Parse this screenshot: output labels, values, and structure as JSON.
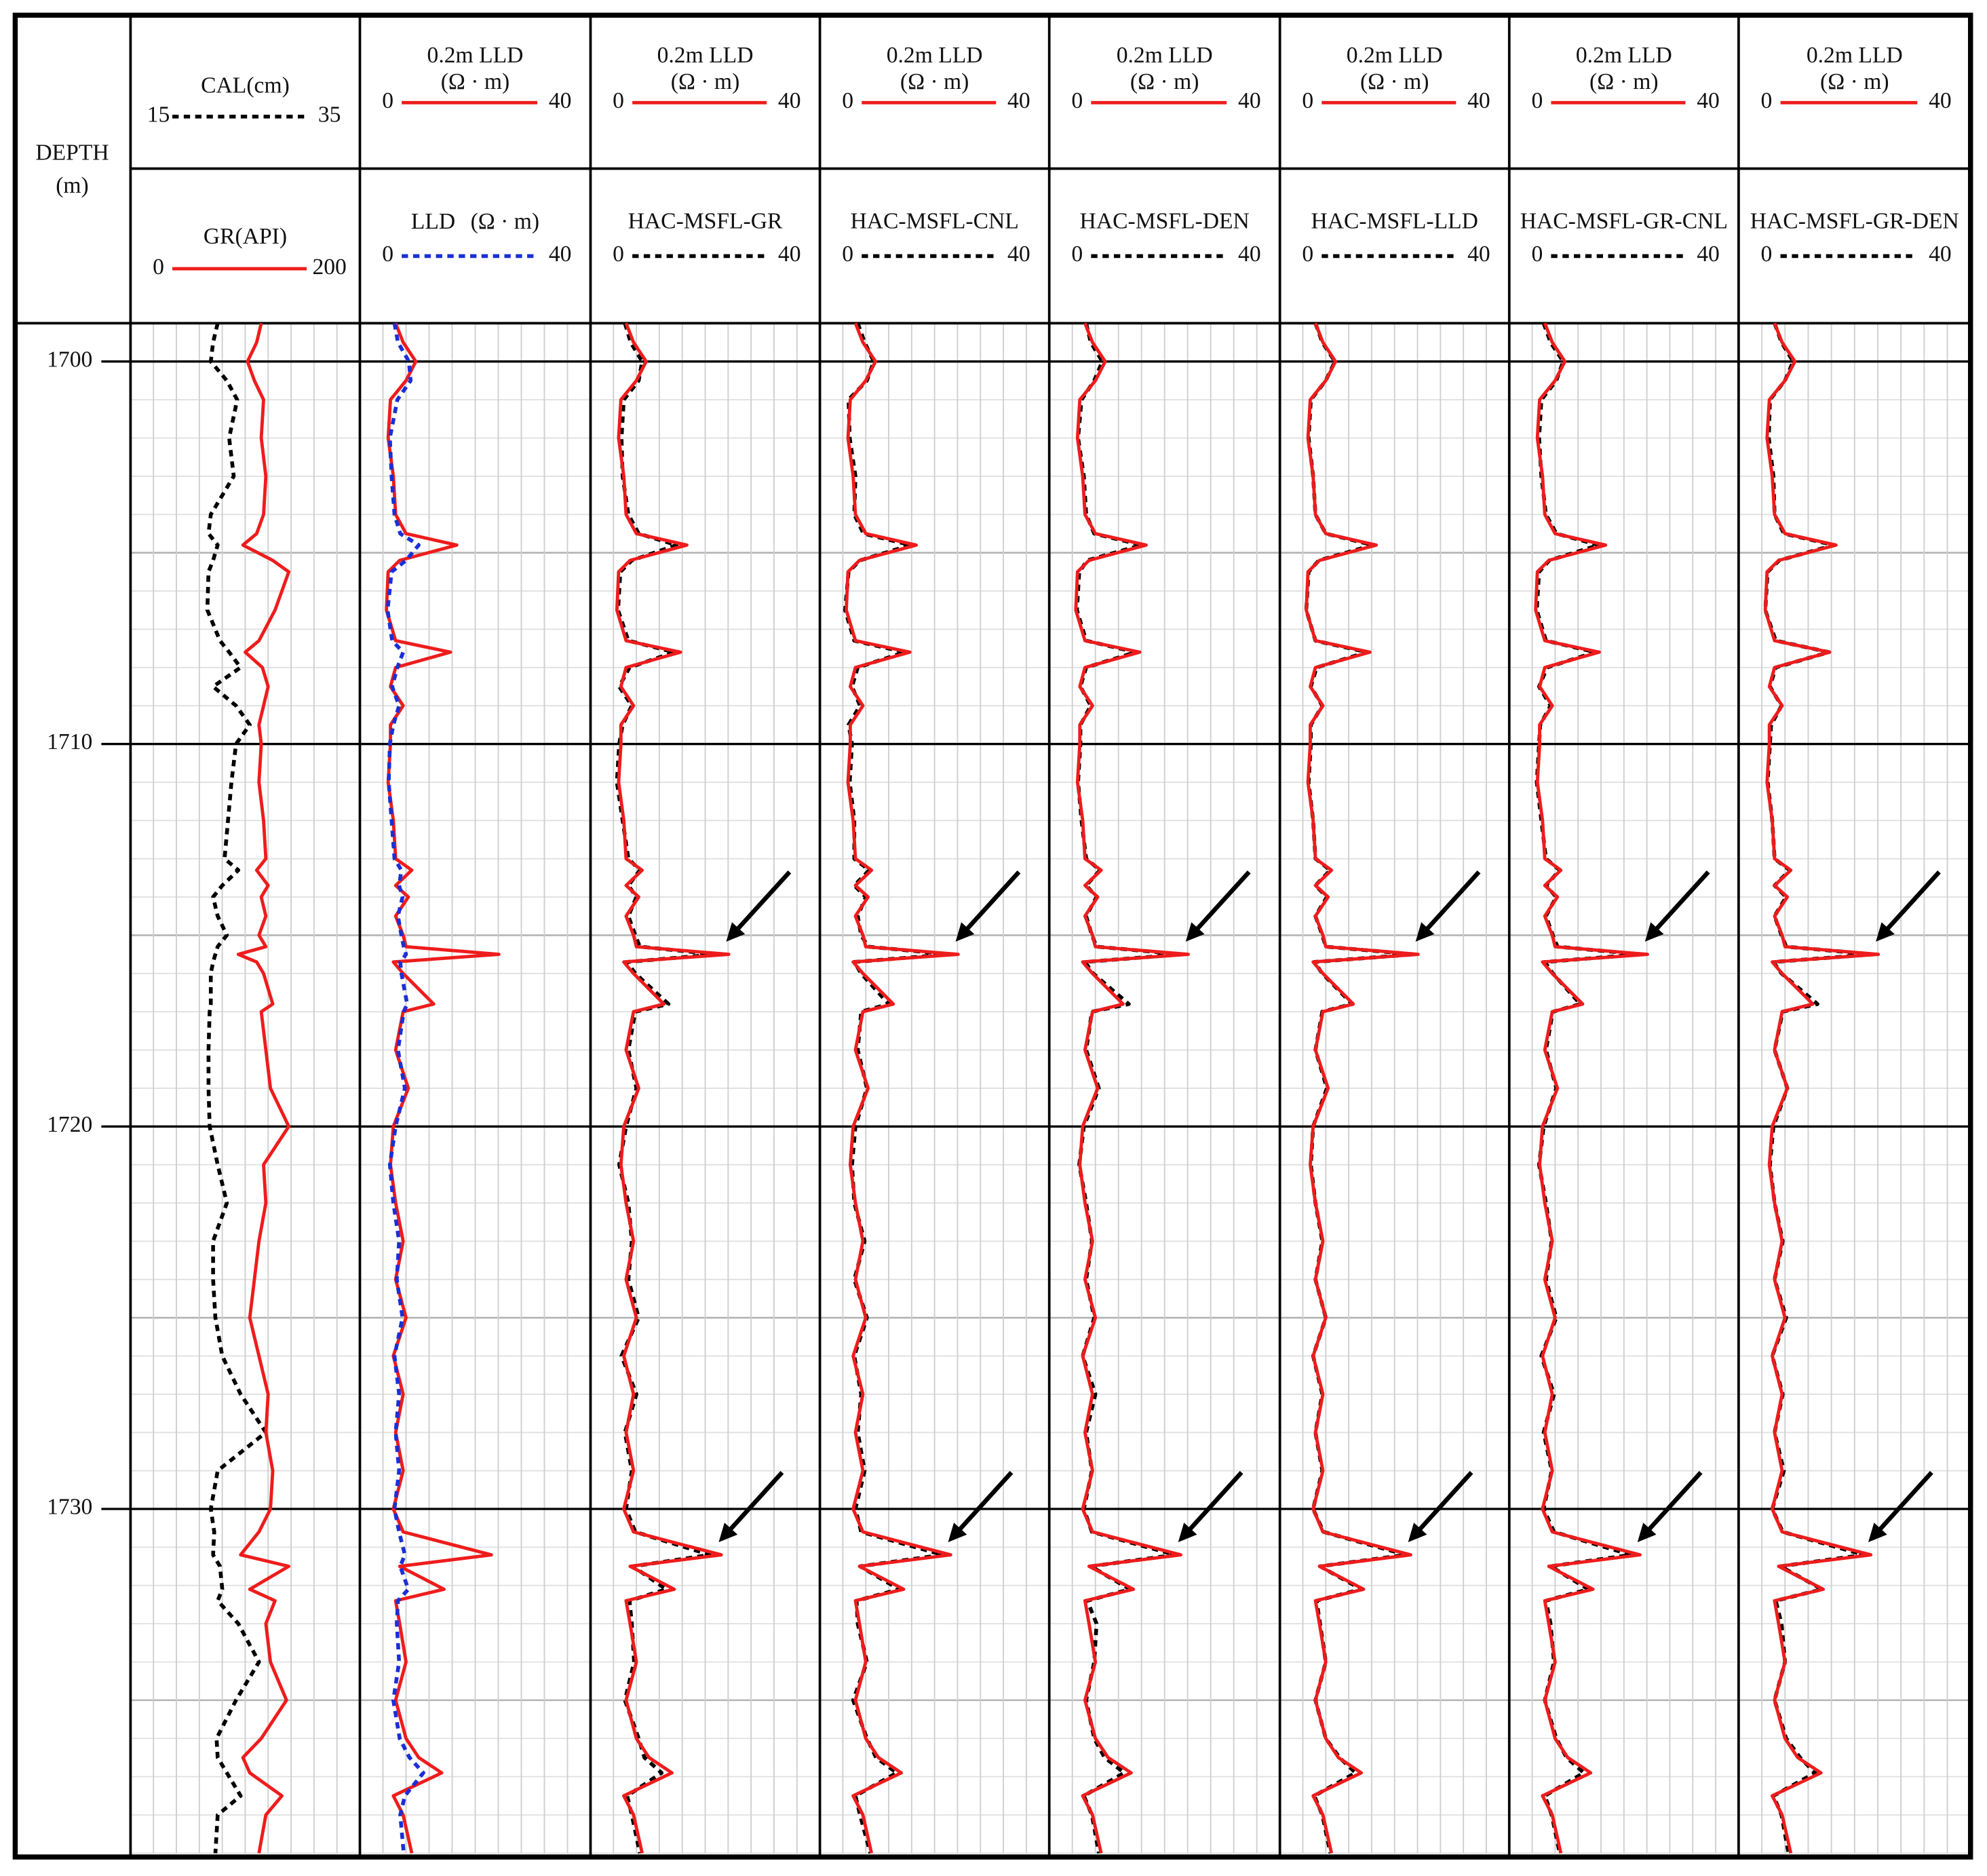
{
  "chart_data": {
    "type": "well-log",
    "depth_label": "DEPTH",
    "depth_unit": "(m)",
    "ylim": [
      1699,
      1739
    ],
    "yticks": [
      1700,
      1710,
      1720,
      1730
    ],
    "depth": [
      1699,
      1699.5,
      1700,
      1700.5,
      1701,
      1702,
      1703,
      1704,
      1704.5,
      1704.8,
      1705.2,
      1705.5,
      1706.5,
      1707.3,
      1707.6,
      1708,
      1708.5,
      1709,
      1709.5,
      1710,
      1711,
      1712,
      1713,
      1713.3,
      1713.7,
      1714,
      1714.5,
      1715,
      1715.3,
      1715.5,
      1715.7,
      1716,
      1716.8,
      1717,
      1718,
      1719,
      1720,
      1721,
      1722,
      1723,
      1724,
      1725,
      1726,
      1727,
      1728,
      1729,
      1730,
      1730.6,
      1731.2,
      1731.5,
      1732.1,
      1732.4,
      1733,
      1734,
      1735,
      1736,
      1736.5,
      1736.9,
      1737.5,
      1738,
      1739
    ],
    "cal": {
      "name": "CAL(cm)",
      "color": "#000000",
      "dash": true,
      "xlim": [
        15,
        35
      ],
      "values": [
        22.6,
        22.2,
        22.0,
        23.4,
        24.3,
        23.6,
        24.0,
        22.0,
        21.8,
        22.6,
        22.2,
        21.8,
        21.7,
        22.8,
        23.6,
        24.6,
        22.2,
        24.2,
        25.4,
        24.2,
        23.8,
        23.5,
        23.2,
        24.4,
        23.0,
        22.2,
        22.6,
        23.4,
        22.6,
        22.4,
        22.2,
        22.0,
        22.0,
        21.9,
        21.8,
        21.8,
        21.9,
        22.6,
        23.4,
        22.2,
        22.2,
        22.4,
        23.0,
        24.6,
        26.8,
        22.6,
        22.0,
        22.3,
        22.2,
        22.8,
        23.0,
        22.6,
        24.4,
        26.2,
        24.2,
        22.5,
        22.6,
        23.4,
        24.6,
        22.6,
        22.4
      ]
    },
    "gr": {
      "name": "GR(API)",
      "color": "#ee1c1c",
      "dash": false,
      "xlim": [
        0,
        200
      ],
      "values": [
        114,
        110,
        102,
        108,
        116,
        114,
        118,
        116,
        110,
        98,
        124,
        138,
        126,
        112,
        100,
        115,
        120,
        116,
        112,
        114,
        112,
        116,
        118,
        110,
        120,
        114,
        118,
        112,
        118,
        94,
        110,
        116,
        124,
        114,
        118,
        122,
        138,
        116,
        118,
        112,
        108,
        104,
        112,
        120,
        118,
        124,
        122,
        112,
        96,
        138,
        104,
        126,
        118,
        122,
        136,
        114,
        98,
        104,
        132,
        118,
        112
      ]
    },
    "reference": {
      "name": "0.2m LLD",
      "unit": "(Ω · m)",
      "color": "#ee1c1c",
      "dash": false,
      "xlim": [
        0,
        40
      ],
      "values": [
        6.2,
        7.5,
        9.7,
        8.0,
        5.3,
        4.9,
        5.8,
        6.2,
        8.0,
        16.8,
        6.9,
        4.9,
        4.6,
        6.2,
        15.7,
        6.2,
        5.3,
        7.5,
        5.3,
        5.3,
        4.9,
        5.8,
        6.2,
        9.0,
        6.2,
        8.4,
        6.2,
        7.5,
        8.0,
        24.1,
        5.8,
        7.5,
        12.8,
        7.5,
        6.2,
        8.4,
        5.8,
        5.3,
        6.2,
        7.5,
        6.2,
        8.0,
        5.8,
        7.5,
        6.2,
        7.5,
        5.8,
        7.5,
        22.8,
        6.9,
        14.6,
        6.2,
        6.9,
        8.0,
        6.2,
        8.0,
        10.2,
        14.2,
        5.8,
        7.5,
        9.0
      ]
    },
    "lld": {
      "name": "LLD",
      "unit": "(Ω · m)",
      "color": "#1a2fd6",
      "dash": true,
      "xlim": [
        0,
        40
      ],
      "values": [
        6.0,
        6.6,
        8.5,
        8.8,
        6.5,
        5.2,
        5.5,
        6.0,
        7.0,
        10.2,
        8.0,
        5.5,
        4.8,
        5.6,
        7.5,
        6.5,
        5.6,
        6.8,
        5.8,
        5.2,
        5.0,
        5.5,
        6.0,
        7.2,
        6.8,
        7.4,
        6.6,
        7.2,
        7.6,
        8.0,
        7.0,
        7.2,
        8.2,
        7.6,
        6.6,
        7.8,
        6.2,
        5.2,
        5.8,
        6.8,
        6.4,
        7.4,
        6.0,
        6.8,
        6.2,
        6.8,
        6.0,
        6.8,
        7.8,
        7.0,
        8.4,
        6.6,
        6.4,
        6.8,
        5.8,
        6.9,
        8.6,
        11.0,
        7.8,
        7.0,
        7.6
      ]
    },
    "predictions": [
      {
        "name": "HAC-MSFL-GR",
        "color": "#000000",
        "dash": true,
        "xlim": [
          0,
          40
        ],
        "values": [
          6.0,
          7.0,
          9.0,
          8.4,
          5.8,
          5.4,
          5.6,
          6.6,
          8.4,
          15.0,
          7.2,
          5.2,
          4.8,
          6.6,
          14.6,
          6.8,
          5.0,
          7.2,
          5.6,
          5.0,
          4.6,
          5.6,
          6.6,
          8.6,
          6.6,
          8.0,
          6.6,
          7.8,
          8.6,
          22.0,
          6.4,
          7.8,
          13.6,
          7.8,
          6.6,
          8.0,
          6.2,
          5.0,
          6.6,
          7.2,
          6.6,
          8.4,
          5.4,
          8.0,
          6.0,
          7.2,
          6.2,
          7.8,
          20.8,
          7.4,
          13.2,
          6.8,
          7.2,
          7.6,
          6.0,
          8.4,
          9.4,
          12.4,
          6.4,
          7.2,
          8.6
        ]
      },
      {
        "name": "HAC-MSFL-CNL",
        "color": "#000000",
        "dash": true,
        "xlim": [
          0,
          40
        ],
        "values": [
          6.6,
          7.8,
          9.4,
          8.2,
          5.0,
          5.2,
          6.2,
          6.0,
          7.6,
          15.8,
          7.0,
          5.0,
          4.4,
          6.0,
          14.8,
          6.6,
          5.6,
          7.0,
          5.0,
          5.6,
          5.2,
          6.0,
          6.0,
          8.6,
          6.0,
          8.0,
          6.6,
          7.2,
          8.4,
          22.6,
          6.0,
          7.2,
          12.0,
          7.2,
          6.6,
          8.2,
          6.2,
          5.6,
          6.0,
          7.8,
          6.0,
          8.2,
          6.0,
          7.2,
          6.6,
          7.8,
          6.2,
          7.2,
          21.4,
          7.0,
          13.8,
          6.4,
          6.6,
          8.2,
          5.8,
          8.2,
          9.8,
          13.4,
          6.2,
          7.0,
          8.8
        ]
      },
      {
        "name": "HAC-MSFL-DEN",
        "color": "#000000",
        "dash": true,
        "xlim": [
          0,
          40
        ],
        "values": [
          6.4,
          7.2,
          9.2,
          7.8,
          5.6,
          5.0,
          6.0,
          6.4,
          7.8,
          16.0,
          6.6,
          5.2,
          4.8,
          6.4,
          15.0,
          6.4,
          5.4,
          7.2,
          5.4,
          5.4,
          5.0,
          5.6,
          6.4,
          8.8,
          6.4,
          8.2,
          6.4,
          7.4,
          8.2,
          23.0,
          6.2,
          7.6,
          13.8,
          7.4,
          6.4,
          8.6,
          6.0,
          5.2,
          6.4,
          7.4,
          6.4,
          7.8,
          5.8,
          8.0,
          6.4,
          7.4,
          6.0,
          7.4,
          21.8,
          7.2,
          14.0,
          6.6,
          8.2,
          7.8,
          6.4,
          7.8,
          9.6,
          13.0,
          6.0,
          7.4,
          8.6
        ]
      },
      {
        "name": "HAC-MSFL-LLD",
        "color": "#000000",
        "dash": true,
        "xlim": [
          0,
          40
        ],
        "values": [
          6.2,
          7.4,
          9.6,
          8.0,
          5.4,
          5.0,
          5.8,
          6.2,
          8.0,
          16.2,
          6.8,
          5.0,
          4.6,
          6.2,
          15.2,
          6.4,
          5.4,
          7.4,
          5.4,
          5.4,
          5.0,
          5.8,
          6.2,
          8.8,
          6.2,
          8.2,
          6.2,
          7.4,
          8.0,
          23.4,
          6.0,
          7.4,
          12.6,
          7.4,
          6.2,
          8.2,
          5.8,
          5.4,
          6.2,
          7.4,
          6.2,
          8.0,
          5.8,
          7.4,
          6.2,
          7.4,
          5.8,
          7.6,
          22.0,
          7.0,
          14.2,
          6.4,
          7.0,
          8.0,
          6.2,
          8.0,
          10.4,
          13.2,
          6.0,
          7.4,
          8.8
        ]
      },
      {
        "name": "HAC-MSFL-GR-CNL",
        "color": "#000000",
        "dash": true,
        "xlim": [
          0,
          40
        ],
        "values": [
          6.0,
          7.2,
          9.4,
          8.2,
          5.6,
          5.2,
          5.6,
          6.4,
          8.2,
          15.6,
          7.0,
          5.2,
          4.8,
          6.4,
          15.0,
          6.6,
          5.2,
          7.2,
          5.4,
          5.2,
          4.8,
          5.6,
          6.4,
          8.8,
          6.4,
          8.2,
          6.4,
          7.6,
          8.4,
          22.8,
          6.2,
          7.6,
          12.4,
          7.6,
          6.4,
          8.2,
          6.0,
          5.2,
          6.4,
          7.4,
          6.4,
          8.2,
          5.6,
          7.8,
          6.0,
          7.4,
          6.0,
          7.8,
          21.2,
          7.2,
          13.8,
          6.4,
          7.2,
          7.8,
          6.2,
          8.2,
          10.0,
          13.0,
          6.2,
          7.4,
          8.8
        ]
      },
      {
        "name": "HAC-MSFL-GR-DEN",
        "color": "#000000",
        "dash": true,
        "xlim": [
          0,
          40
        ],
        "values": [
          6.2,
          7.4,
          9.4,
          8.0,
          5.4,
          5.2,
          6.0,
          6.2,
          7.8,
          16.4,
          7.0,
          5.0,
          4.6,
          6.4,
          15.6,
          6.4,
          5.4,
          7.4,
          5.6,
          5.4,
          5.0,
          5.8,
          6.2,
          8.8,
          6.2,
          8.2,
          6.2,
          7.4,
          8.2,
          23.2,
          6.0,
          7.4,
          13.6,
          7.6,
          6.2,
          8.4,
          6.0,
          5.4,
          6.2,
          7.6,
          6.2,
          8.2,
          5.8,
          7.6,
          6.2,
          7.8,
          5.8,
          7.6,
          21.6,
          7.2,
          14.4,
          6.4,
          7.4,
          8.0,
          6.2,
          8.2,
          10.6,
          13.2,
          6.0,
          7.4,
          8.6
        ]
      }
    ]
  }
}
